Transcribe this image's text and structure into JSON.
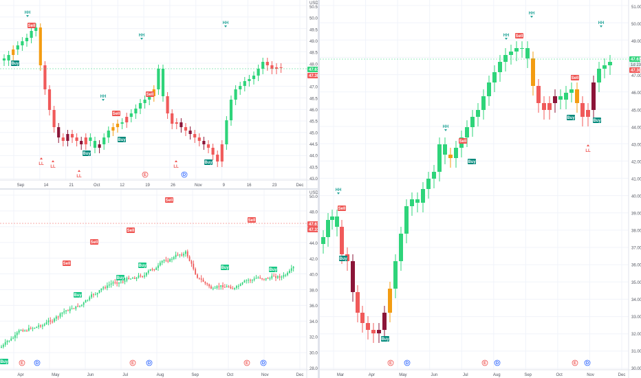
{
  "colors": {
    "up": "#2ed47a",
    "down": "#f05a5a",
    "dark_down": "#8b1538",
    "neutral": "#f39c12",
    "hh": "#26a69a",
    "ll": "#ef5350",
    "buy_bg": "#00897b",
    "sell_bg": "#ef5350",
    "grid": "#f0f3fa",
    "event_e": "#ef5350",
    "event_d": "#2962ff"
  },
  "panels": {
    "top_left": {
      "currency": "USD",
      "price_ticks": [
        "50.50",
        "50.00",
        "49.50",
        "49.00",
        "48.50",
        "48.00",
        "47.50",
        "47.00",
        "46.50",
        "46.00",
        "45.50",
        "45.00",
        "44.50",
        "44.00",
        "43.50",
        "43.00"
      ],
      "date_ticks": [
        "Sep",
        "14",
        "21",
        "Oct",
        "12",
        "19",
        "26",
        "Nov",
        "9",
        "16",
        "23",
        "Dec"
      ],
      "last_price_a": "47.61",
      "last_price_b": "47.30",
      "labels": {
        "hh": "HH",
        "ll": "LL",
        "buy": "Buy",
        "sell": "Sell",
        "e": "E",
        "d": "D"
      }
    },
    "bottom_left": {
      "currency": "USD",
      "price_ticks": [
        "50.00",
        "48.00",
        "46.00",
        "44.00",
        "42.00",
        "40.00",
        "38.00",
        "36.00",
        "34.00",
        "32.00",
        "30.00",
        "28.00"
      ],
      "date_ticks": [
        "Apr",
        "May",
        "Jun",
        "Jul",
        "Aug",
        "Sep",
        "Oct",
        "Nov",
        "Dec"
      ],
      "last_price_a": "47.61",
      "last_price_b": "47.31",
      "labels": {
        "buy": "Buy",
        "sell": "Sell",
        "e": "E",
        "d": "D"
      }
    },
    "right": {
      "price_ticks": [
        "51.00",
        "50.00",
        "49.00",
        "48.00",
        "47.00",
        "46.00",
        "45.00",
        "44.00",
        "43.00",
        "42.00",
        "41.00",
        "40.00",
        "39.00",
        "38.00",
        "37.00",
        "36.00",
        "35.00",
        "34.00",
        "33.00",
        "32.00",
        "31.00",
        "30.00"
      ],
      "date_ticks": [
        "Mar",
        "Apr",
        "May",
        "Jun",
        "Jul",
        "Aug",
        "Sep",
        "Oct",
        "Nov",
        "Dec"
      ],
      "last_price_a": "47.61",
      "last_price_b": "47.30",
      "volume_tag": "1d 23h",
      "labels": {
        "hh": "HH",
        "ll": "LL",
        "buy": "Buy",
        "sell": "Sell",
        "e": "E",
        "d": "D"
      }
    }
  }
}
